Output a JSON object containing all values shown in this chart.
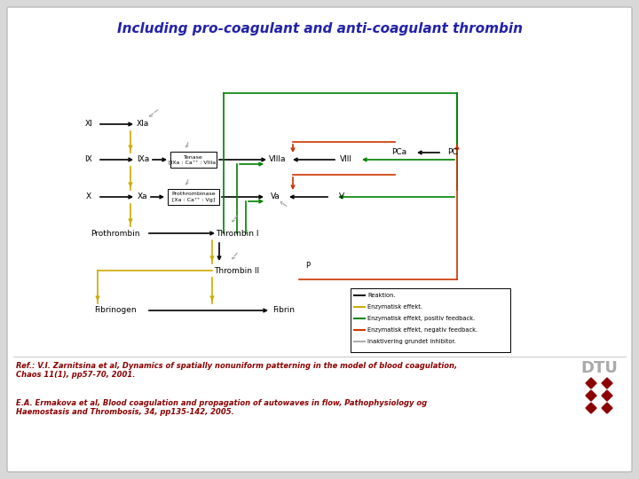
{
  "title": "Including pro-coagulant and anti-coagulant thrombin",
  "title_color": "#2222aa",
  "title_fontsize": 11,
  "bg_color": "#d8d8d8",
  "slide_bg": "#ffffff",
  "ref1": "Ref.: V.I. Zarnitsina et al, Dynamics of spatially nonuniform patterning in the model of blood coagulation,\nChaos 11(1), pp57-70, 2001.",
  "ref2": "E.A. Ermakova et al, Blood coagulation and propagation of autowaves in flow, Pathophysiology og\nHaemostasis and Thrombosis, 34, pp135-142, 2005.",
  "ref_color": "#8b0000",
  "dtu_color": "#8b0000",
  "dtu_gray": "#aaaaaa",
  "colors": {
    "black": "#000000",
    "yellow": "#ccaa00",
    "green": "#008000",
    "red": "#cc3300",
    "dashed": "#aaaaaa"
  },
  "legend_items": [
    {
      "color": "#000000",
      "label": "Reaktion."
    },
    {
      "color": "#ccaa00",
      "label": "Enzymatisk effekt."
    },
    {
      "color": "#008000",
      "label": "Enzymatisk effekt, positiv feedback."
    },
    {
      "color": "#cc3300",
      "label": "Enzymatisk effekt, negativ feedback."
    },
    {
      "color": "#aaaaaa",
      "label": "Inaktivering grundet inhibitor."
    }
  ]
}
